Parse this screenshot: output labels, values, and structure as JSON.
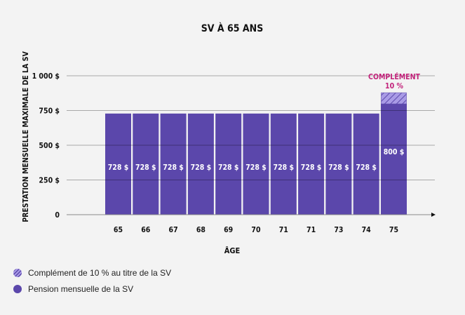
{
  "chart_data": {
    "type": "bar",
    "title": "SV À 65 ANS",
    "xlabel": "ÂGE",
    "ylabel": "PRESTATION MENSUELLE MAXIMALE DE LA SV",
    "ylim": [
      0,
      1000
    ],
    "yticks": [
      {
        "value": 0,
        "label": "0"
      },
      {
        "value": 250,
        "label": "250 $"
      },
      {
        "value": 500,
        "label": "500 $"
      },
      {
        "value": 750,
        "label": "750 $"
      },
      {
        "value": 1000,
        "label": "1 000 $"
      }
    ],
    "grid": true,
    "categories": [
      "65",
      "66",
      "67",
      "68",
      "69",
      "70",
      "71",
      "71",
      "73",
      "74",
      "75"
    ],
    "series": [
      {
        "name": "Pension mensuelle de la SV",
        "values": [
          728,
          728,
          728,
          728,
          728,
          728,
          728,
          728,
          728,
          728,
          800
        ],
        "data_labels": [
          "728 $",
          "728 $",
          "728 $",
          "728 $",
          "728 $",
          "728 $",
          "728 $",
          "728 $",
          "728 $",
          "728 $",
          "800 $"
        ],
        "color": "#5b47ab"
      },
      {
        "name": "Complément de 10 % au titre de la SV",
        "values": [
          0,
          0,
          0,
          0,
          0,
          0,
          0,
          0,
          0,
          0,
          80
        ],
        "color": "#a99be6",
        "pattern": "hatched"
      }
    ],
    "annotation": {
      "line1": "COMPLÉMENT",
      "line2": "10 %",
      "color": "#c2227a"
    },
    "legend_placement": "bottom-left"
  }
}
